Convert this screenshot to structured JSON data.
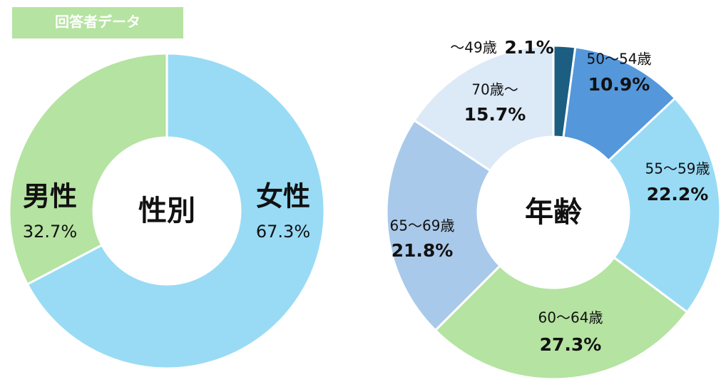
{
  "header": {
    "title": "回答者データ"
  },
  "chart_data": [
    {
      "type": "donut",
      "center_label": "性別",
      "categories": [
        "女性",
        "男性"
      ],
      "values": [
        67.3,
        32.7
      ],
      "value_labels": [
        "67.3%",
        "32.7%"
      ],
      "colors": [
        "#99dbf5",
        "#b5e3a1"
      ]
    },
    {
      "type": "donut",
      "center_label": "年齢",
      "categories": [
        "〜49歳",
        "50〜54歳",
        "55〜59歳",
        "60〜64歳",
        "65〜69歳",
        "70歳〜"
      ],
      "values": [
        2.1,
        10.9,
        22.2,
        27.3,
        21.8,
        15.7
      ],
      "value_labels": [
        "2.1%",
        "10.9%",
        "22.2%",
        "27.3%",
        "21.8%",
        "15.7%"
      ],
      "colors": [
        "#1b5e82",
        "#5497db",
        "#99dbf5",
        "#b5e3a1",
        "#a9c9ea",
        "#dce9f7"
      ]
    }
  ]
}
